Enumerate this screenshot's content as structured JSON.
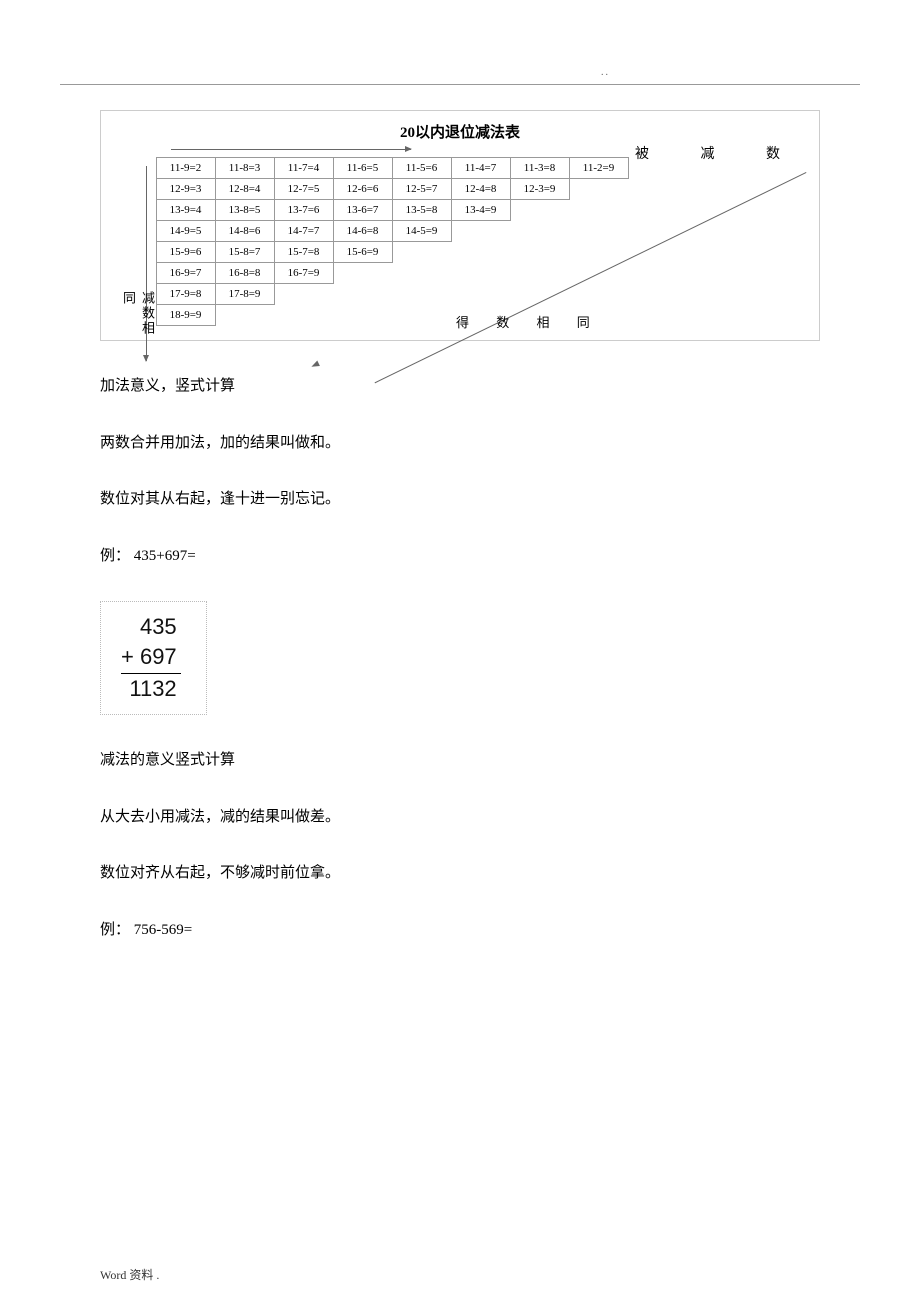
{
  "header_dots": "..",
  "table": {
    "title": "20以内退位减法表",
    "top_label": "被 减 数",
    "left_label": "减数相同",
    "diag_label": "得 数 相 同",
    "rows": [
      [
        "11-9=2",
        "11-8=3",
        "11-7=4",
        "11-6=5",
        "11-5=6",
        "11-4=7",
        "11-3=8",
        "11-2=9"
      ],
      [
        "12-9=3",
        "12-8=4",
        "12-7=5",
        "12-6=6",
        "12-5=7",
        "12-4=8",
        "12-3=9"
      ],
      [
        "13-9=4",
        "13-8=5",
        "13-7=6",
        "13-6=7",
        "13-5=8",
        "13-4=9"
      ],
      [
        "14-9=5",
        "14-8=6",
        "14-7=7",
        "14-6=8",
        "14-5=9"
      ],
      [
        "15-9=6",
        "15-8=7",
        "15-7=8",
        "15-6=9"
      ],
      [
        "16-9=7",
        "16-8=8",
        "16-7=9"
      ],
      [
        "17-9=8",
        "17-8=9"
      ],
      [
        "18-9=9"
      ]
    ]
  },
  "paragraphs": {
    "p1": "加法意义，竖式计算",
    "p2": "两数合并用加法，加的结果叫做和。",
    "p3": "数位对其从右起，逢十进一别忘记。",
    "p4": "例： 435+697=",
    "p5": "减法的意义竖式计算",
    "p6": "从大去小用减法，减的结果叫做差。",
    "p7": "数位对齐从右起，不够减时前位拿。",
    "p8": "例： 756-569="
  },
  "calc": {
    "line1": "435",
    "line2": "+ 697",
    "line3": "1132"
  },
  "footer": "Word 资料 ."
}
